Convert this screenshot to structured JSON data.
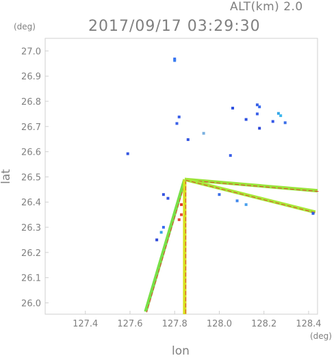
{
  "header": {
    "altitude": "ALT(km) 2.0",
    "timestamp": "2017/09/17 03:29:30"
  },
  "chart_data": {
    "type": "scatter",
    "xlabel": "lon",
    "ylabel": "lat",
    "xunit": "(deg)",
    "yunit": "(deg)",
    "xlim": [
      127.22,
      128.44
    ],
    "ylim": [
      25.955,
      27.05
    ],
    "xticks": [
      "127.4",
      "127.6",
      "127.8",
      "128.0",
      "128.2",
      "128.4"
    ],
    "yticks": [
      "26.0",
      "26.1",
      "26.2",
      "26.3",
      "26.4",
      "26.5",
      "26.6",
      "26.7",
      "26.8",
      "26.9",
      "27.0"
    ],
    "radar_center": {
      "lon": 127.845,
      "lat": 26.49
    },
    "beams": [
      {
        "to": [
          127.67,
          25.965
        ],
        "color": "#78e048"
      },
      {
        "to": [
          127.845,
          25.955
        ],
        "color": "#d8e020"
      },
      {
        "to": [
          128.44,
          26.445
        ],
        "color": "#9ae33a"
      },
      {
        "to": [
          128.43,
          26.36
        ],
        "color": "#a8e838"
      }
    ],
    "points": [
      {
        "lon": 127.8,
        "lat": 26.968,
        "c": "#2f6cf2"
      },
      {
        "lon": 127.8,
        "lat": 26.962,
        "c": "#3a7cf0"
      },
      {
        "lon": 128.06,
        "lat": 26.773,
        "c": "#2c4fe0"
      },
      {
        "lon": 128.12,
        "lat": 26.728,
        "c": "#2c4fe0"
      },
      {
        "lon": 128.17,
        "lat": 26.786,
        "c": "#3960e6"
      },
      {
        "lon": 128.18,
        "lat": 26.778,
        "c": "#3b6df0"
      },
      {
        "lon": 128.17,
        "lat": 26.75,
        "c": "#3a5fe8"
      },
      {
        "lon": 128.18,
        "lat": 26.693,
        "c": "#2d47d8"
      },
      {
        "lon": 128.24,
        "lat": 26.72,
        "c": "#3458e8"
      },
      {
        "lon": 128.265,
        "lat": 26.752,
        "c": "#34a6e8"
      },
      {
        "lon": 128.275,
        "lat": 26.743,
        "c": "#3fb8ee"
      },
      {
        "lon": 128.295,
        "lat": 26.715,
        "c": "#3a6ee8"
      },
      {
        "lon": 127.82,
        "lat": 26.738,
        "c": "#3a60e8"
      },
      {
        "lon": 127.81,
        "lat": 26.712,
        "c": "#3a60e8"
      },
      {
        "lon": 127.86,
        "lat": 26.648,
        "c": "#3456e0"
      },
      {
        "lon": 127.59,
        "lat": 26.592,
        "c": "#3456e0"
      },
      {
        "lon": 127.93,
        "lat": 26.673,
        "c": "#7ab0e0"
      },
      {
        "lon": 128.05,
        "lat": 26.585,
        "c": "#3a60e8"
      },
      {
        "lon": 127.75,
        "lat": 26.43,
        "c": "#3553e0"
      },
      {
        "lon": 127.77,
        "lat": 26.415,
        "c": "#3553e0"
      },
      {
        "lon": 127.83,
        "lat": 26.39,
        "c": "#e03a2a"
      },
      {
        "lon": 127.83,
        "lat": 26.35,
        "c": "#e84a3a"
      },
      {
        "lon": 127.82,
        "lat": 26.33,
        "c": "#e84a3a"
      },
      {
        "lon": 127.75,
        "lat": 26.3,
        "c": "#3b6df0"
      },
      {
        "lon": 127.74,
        "lat": 26.28,
        "c": "#36a0e6"
      },
      {
        "lon": 127.72,
        "lat": 26.25,
        "c": "#2d47d8"
      },
      {
        "lon": 128.42,
        "lat": 26.355,
        "c": "#2f5fe6"
      },
      {
        "lon": 128.0,
        "lat": 26.43,
        "c": "#3a6ee8"
      },
      {
        "lon": 128.08,
        "lat": 26.405,
        "c": "#3f86ec"
      },
      {
        "lon": 128.12,
        "lat": 26.39,
        "c": "#4aa0ec"
      }
    ]
  }
}
